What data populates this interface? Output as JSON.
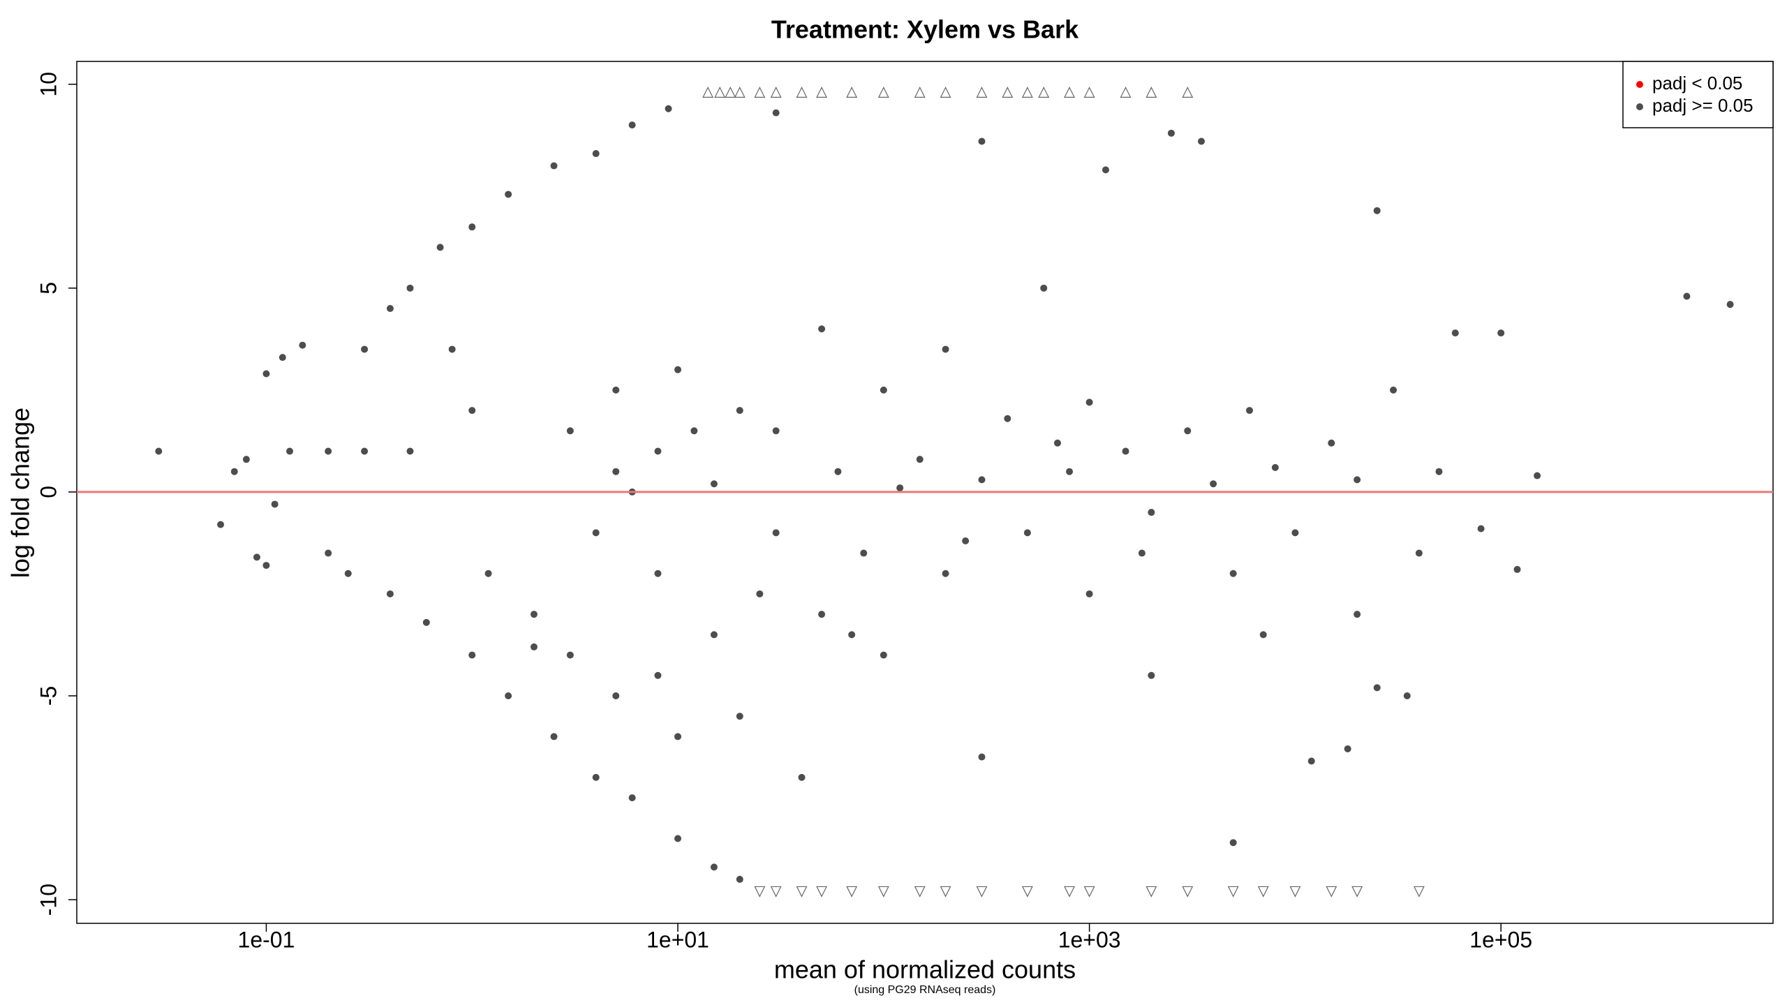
{
  "chart_data": {
    "type": "scatter",
    "title": "Treatment: Xylem vs Bark",
    "xlabel": "mean of normalized counts",
    "caption": "(using PG29 RNAseq reads)",
    "ylabel": "log fold change",
    "xscale": "log",
    "xlim": [
      0.012,
      2100000
    ],
    "ylim": [
      -10.58,
      10.56
    ],
    "xticks": [
      {
        "value": 0.1,
        "label": "1e-01"
      },
      {
        "value": 10,
        "label": "1e+01"
      },
      {
        "value": 1000,
        "label": "1e+03"
      },
      {
        "value": 100000,
        "label": "1e+05"
      }
    ],
    "yticks": [
      -10,
      -5,
      0,
      5,
      10
    ],
    "hline": {
      "value": 0,
      "color": "#e87a7a"
    },
    "legend": "top-right",
    "series": [
      {
        "name": "padj < 0.05",
        "color": "#ff0000",
        "x": [],
        "values": []
      },
      {
        "name": "padj >= 0.05",
        "color": "#4d4d4d",
        "x": [
          0.03,
          0.07,
          0.08,
          0.1,
          0.12,
          0.15,
          0.06,
          0.09,
          0.1,
          0.11,
          0.13,
          0.2,
          0.3,
          0.5,
          0.2,
          0.25,
          0.3,
          0.4,
          0.5,
          0.7,
          1.0,
          1.5,
          2.5,
          4,
          6,
          9,
          0.4,
          0.6,
          1,
          1.5,
          2.5,
          4,
          6,
          10,
          15,
          20,
          0.8,
          1,
          1.2,
          2,
          3,
          3,
          5,
          5,
          5,
          8,
          8,
          8,
          10,
          10,
          15,
          15,
          20,
          20,
          30,
          30,
          40,
          50,
          50,
          60,
          80,
          100,
          100,
          150,
          200,
          200,
          300,
          300,
          400,
          500,
          600,
          800,
          1000,
          1000,
          1500,
          2000,
          2000,
          3000,
          4000,
          5000,
          6000,
          8000,
          10000,
          15000,
          20000,
          20000,
          30000,
          40000,
          50000,
          80000,
          100000,
          120000,
          150000,
          800000,
          1300000,
          60000,
          25000,
          35000,
          12000,
          5000,
          3500,
          2500,
          1200,
          300,
          30,
          2,
          4,
          6,
          12,
          25,
          70,
          120,
          250,
          700,
          1800,
          7000,
          25000,
          18000
        ],
        "values": [
          1.0,
          0.5,
          0.8,
          2.9,
          3.3,
          3.6,
          -0.8,
          -1.6,
          -1.8,
          -0.3,
          1.0,
          1.0,
          1.0,
          1.0,
          -1.5,
          -2.0,
          3.5,
          4.5,
          5.0,
          6.0,
          6.5,
          7.3,
          8.0,
          8.3,
          9.0,
          9.4,
          -2.5,
          -3.2,
          -4.0,
          -5.0,
          -6.0,
          -7.0,
          -7.5,
          -8.5,
          -9.2,
          -9.5,
          3.5,
          2.0,
          -2.0,
          -3.0,
          -4.0,
          1.5,
          -5.0,
          2.5,
          0.5,
          -4.5,
          -2.0,
          1.0,
          3.0,
          -6.0,
          -3.5,
          0.2,
          2.0,
          -5.5,
          -1.0,
          1.5,
          -7.0,
          -3.0,
          4.0,
          0.5,
          -1.5,
          2.5,
          -4.0,
          0.8,
          -2.0,
          3.5,
          0.3,
          -6.5,
          1.8,
          -1.0,
          5.0,
          0.5,
          -2.5,
          2.2,
          1.0,
          -0.5,
          -4.5,
          1.5,
          0.2,
          -2.0,
          2.0,
          0.6,
          -1.0,
          1.2,
          -3.0,
          0.3,
          2.5,
          -1.5,
          0.5,
          -0.9,
          3.9,
          -1.9,
          0.4,
          4.8,
          4.6,
          3.9,
          -4.8,
          -5.0,
          -6.6,
          -8.6,
          8.6,
          8.8,
          7.9,
          8.6,
          9.3,
          -3.8,
          -1.0,
          0.0,
          1.5,
          -2.5,
          -3.5,
          0.1,
          -1.2,
          1.2,
          -1.5,
          -3.5,
          6.9,
          -6.3
        ]
      }
    ],
    "clipped_up": {
      "x": [
        14,
        16,
        18,
        20,
        25,
        30,
        40,
        50,
        70,
        100,
        150,
        200,
        300,
        400,
        500,
        600,
        800,
        1000,
        1500,
        2000,
        3000
      ],
      "values": [
        9.8,
        9.8,
        9.8,
        9.8,
        9.8,
        9.8,
        9.8,
        9.8,
        9.8,
        9.8,
        9.8,
        9.8,
        9.8,
        9.8,
        9.8,
        9.8,
        9.8,
        9.8,
        9.8,
        9.8,
        9.8
      ]
    },
    "clipped_down": {
      "x": [
        25,
        30,
        40,
        50,
        70,
        100,
        150,
        200,
        300,
        500,
        800,
        1000,
        2000,
        3000,
        5000,
        7000,
        10000,
        15000,
        20000,
        40000
      ],
      "values": [
        -9.8,
        -9.8,
        -9.8,
        -9.8,
        -9.8,
        -9.8,
        -9.8,
        -9.8,
        -9.8,
        -9.8,
        -9.8,
        -9.8,
        -9.8,
        -9.8,
        -9.8,
        -9.8,
        -9.8,
        -9.8,
        -9.8,
        -9.8
      ]
    }
  }
}
